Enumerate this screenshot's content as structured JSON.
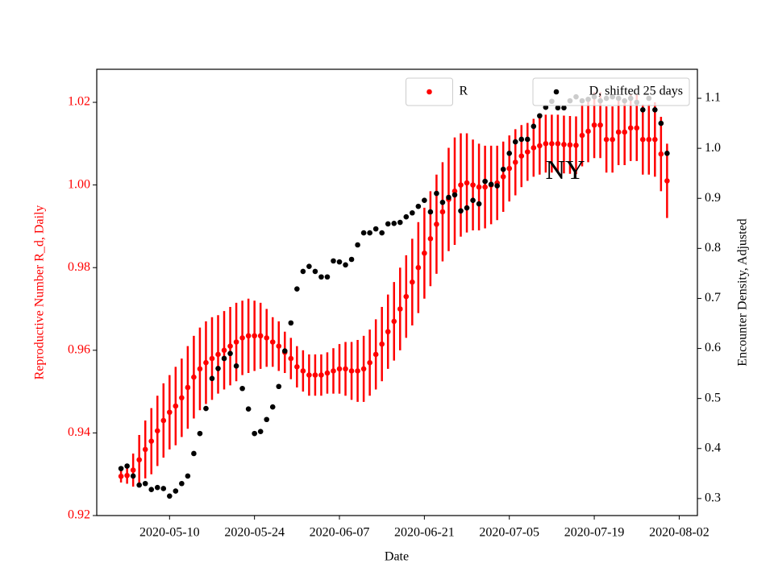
{
  "chart_data": {
    "type": "scatter",
    "x_label": "Date",
    "y_label": "Reproductive Number R_d, Daily",
    "y2_label": "Encounter Density, Adjusted",
    "annotations": [
      {
        "text": "NY"
      }
    ],
    "xlim": [
      "2020-04-28",
      "2020-08-05"
    ],
    "xticks": [
      "2020-05-10",
      "2020-05-24",
      "2020-06-07",
      "2020-06-21",
      "2020-07-05",
      "2020-07-19",
      "2020-08-02"
    ],
    "ylim": [
      0.92,
      1.028
    ],
    "yticks": [
      0.92,
      0.94,
      0.96,
      0.98,
      {
        "value": 1,
        "label": "1.00"
      },
      1.02
    ],
    "y2lim": [
      0.266,
      1.158
    ],
    "y2ticks": [
      0.3,
      0.4,
      0.5,
      0.6,
      0.7,
      0.8,
      0.9,
      {
        "value": 1,
        "label": "1.0"
      },
      1.1
    ],
    "x": [
      "2020-05-02",
      "2020-05-03",
      "2020-05-04",
      "2020-05-05",
      "2020-05-06",
      "2020-05-07",
      "2020-05-08",
      "2020-05-09",
      "2020-05-10",
      "2020-05-11",
      "2020-05-12",
      "2020-05-13",
      "2020-05-14",
      "2020-05-15",
      "2020-05-16",
      "2020-05-17",
      "2020-05-18",
      "2020-05-19",
      "2020-05-20",
      "2020-05-21",
      "2020-05-22",
      "2020-05-23",
      "2020-05-24",
      "2020-05-25",
      "2020-05-26",
      "2020-05-27",
      "2020-05-28",
      "2020-05-29",
      "2020-05-30",
      "2020-05-31",
      "2020-06-01",
      "2020-06-02",
      "2020-06-03",
      "2020-06-04",
      "2020-06-05",
      "2020-06-06",
      "2020-06-07",
      "2020-06-08",
      "2020-06-09",
      "2020-06-10",
      "2020-06-11",
      "2020-06-12",
      "2020-06-13",
      "2020-06-14",
      "2020-06-15",
      "2020-06-16",
      "2020-06-17",
      "2020-06-18",
      "2020-06-19",
      "2020-06-20",
      "2020-06-21",
      "2020-06-22",
      "2020-06-23",
      "2020-06-24",
      "2020-06-25",
      "2020-06-26",
      "2020-06-27",
      "2020-06-28",
      "2020-06-29",
      "2020-06-30",
      "2020-07-01",
      "2020-07-02",
      "2020-07-03",
      "2020-07-04",
      "2020-07-05",
      "2020-07-06",
      "2020-07-07",
      "2020-07-08",
      "2020-07-09",
      "2020-07-10",
      "2020-07-11",
      "2020-07-12",
      "2020-07-13",
      "2020-07-14",
      "2020-07-15",
      "2020-07-16",
      "2020-07-17",
      "2020-07-18",
      "2020-07-19",
      "2020-07-20",
      "2020-07-21",
      "2020-07-22",
      "2020-07-23",
      "2020-07-24",
      "2020-07-25",
      "2020-07-26",
      "2020-07-27",
      "2020-07-28",
      "2020-07-29",
      "2020-07-30",
      "2020-07-31"
    ],
    "series": [
      {
        "name": "R",
        "color": "#ff0000",
        "axis": "y",
        "legend": "upper center",
        "values": [
          0.9295,
          0.9297,
          0.931,
          0.9335,
          0.936,
          0.938,
          0.9405,
          0.943,
          0.945,
          0.9465,
          0.9485,
          0.951,
          0.9535,
          0.9555,
          0.957,
          0.958,
          0.959,
          0.96,
          0.961,
          0.962,
          0.963,
          0.9635,
          0.9635,
          0.9635,
          0.963,
          0.962,
          0.961,
          0.9595,
          0.958,
          0.956,
          0.955,
          0.954,
          0.954,
          0.954,
          0.9545,
          0.955,
          0.9555,
          0.9555,
          0.955,
          0.955,
          0.9555,
          0.957,
          0.959,
          0.9615,
          0.9645,
          0.967,
          0.97,
          0.973,
          0.9765,
          0.98,
          0.9835,
          0.987,
          0.9905,
          0.9935,
          0.9965,
          0.9985,
          1.0,
          1.0005,
          1.0,
          0.9995,
          0.9995,
          1.0,
          1.0005,
          1.002,
          1.004,
          1.0055,
          1.007,
          1.008,
          1.009,
          1.0095,
          1.01,
          1.01,
          1.01,
          1.0098,
          1.0097,
          1.0096,
          1.012,
          1.013,
          1.0145,
          1.0145,
          1.011,
          1.011,
          1.0128,
          1.0128,
          1.0138,
          1.0138,
          1.011,
          1.011,
          1.011,
          1.0075,
          1.001
        ],
        "errors": [
          0.0015,
          0.002,
          0.004,
          0.006,
          0.007,
          0.008,
          0.0085,
          0.009,
          0.009,
          0.0095,
          0.0095,
          0.01,
          0.01,
          0.01,
          0.01,
          0.01,
          0.0095,
          0.0095,
          0.0095,
          0.0095,
          0.009,
          0.009,
          0.0085,
          0.008,
          0.007,
          0.006,
          0.006,
          0.005,
          0.005,
          0.005,
          0.005,
          0.005,
          0.005,
          0.005,
          0.005,
          0.0055,
          0.006,
          0.0065,
          0.007,
          0.0075,
          0.008,
          0.008,
          0.0085,
          0.009,
          0.009,
          0.0095,
          0.01,
          0.01,
          0.0105,
          0.011,
          0.011,
          0.0115,
          0.012,
          0.012,
          0.0125,
          0.013,
          0.0125,
          0.012,
          0.011,
          0.0105,
          0.01,
          0.0095,
          0.009,
          0.0085,
          0.008,
          0.008,
          0.0075,
          0.007,
          0.007,
          0.007,
          0.007,
          0.007,
          0.007,
          0.007,
          0.007,
          0.007,
          0.0075,
          0.0075,
          0.008,
          0.008,
          0.008,
          0.008,
          0.008,
          0.008,
          0.008,
          0.008,
          0.0085,
          0.0085,
          0.009,
          0.009,
          0.009
        ]
      },
      {
        "name": "D, shifted 25 days",
        "color": "#000000",
        "axis": "y2",
        "legend": "upper right",
        "values": [
          0.36,
          0.365,
          0.345,
          0.327,
          0.33,
          0.318,
          0.322,
          0.32,
          0.305,
          0.315,
          0.33,
          0.345,
          0.39,
          0.43,
          0.48,
          0.54,
          0.56,
          0.58,
          0.59,
          0.565,
          0.52,
          0.479,
          0.43,
          0.434,
          0.458,
          0.483,
          0.524,
          0.595,
          0.651,
          0.719,
          0.754,
          0.764,
          0.754,
          0.743,
          0.743,
          0.775,
          0.773,
          0.767,
          0.778,
          0.807,
          0.831,
          0.831,
          0.839,
          0.831,
          0.849,
          0.85,
          0.852,
          0.863,
          0.871,
          0.884,
          0.896,
          0.873,
          0.91,
          0.892,
          0.902,
          0.907,
          0.875,
          0.881,
          0.896,
          0.889,
          0.934,
          0.928,
          0.925,
          0.958,
          0.99,
          1.013,
          1.018,
          1.018,
          1.044,
          1.065,
          1.082,
          1.094,
          1.081,
          1.081,
          1.095,
          1.103,
          1.095,
          1.098,
          1.103,
          1.095,
          1.1,
          1.103,
          1.1,
          1.095,
          1.1,
          1.092,
          1.077,
          1.1,
          1.077,
          1.05,
          0.99
        ]
      }
    ]
  }
}
